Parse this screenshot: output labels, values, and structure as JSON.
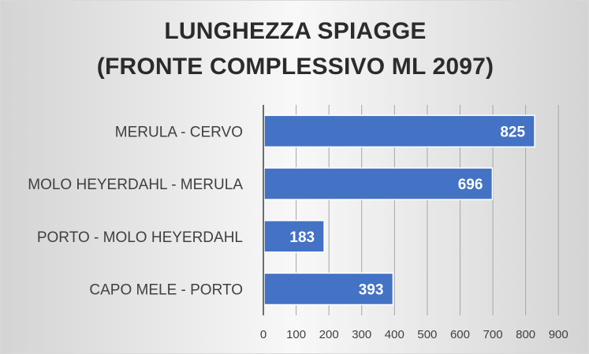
{
  "chart_data": {
    "type": "bar",
    "orientation": "horizontal",
    "title": [
      "LUNGHEZZA SPIAGGE",
      "(FRONTE COMPLESSIVO ML 2097)"
    ],
    "categories": [
      "MERULA - CERVO",
      "MOLO HEYERDAHL - MERULA",
      "PORTO - MOLO HEYERDAHL",
      "CAPO MELE - PORTO"
    ],
    "values": [
      825,
      696,
      183,
      393
    ],
    "xlim": [
      0,
      900
    ],
    "xticks": [
      0,
      100,
      200,
      300,
      400,
      500,
      600,
      700,
      800,
      900
    ],
    "grid": "vertical",
    "data_labels": "inside-end",
    "bar_color": "#4472c4"
  }
}
